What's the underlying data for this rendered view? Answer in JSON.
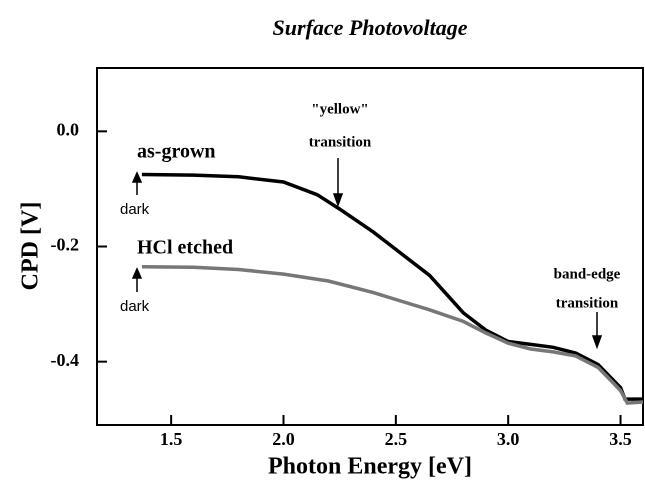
{
  "chart_data": {
    "type": "line",
    "title": "Surface Photovoltage",
    "x_label": "Photon Energy  [eV]",
    "y_label": "CPD  [V]",
    "xlim": [
      1.17,
      3.6
    ],
    "ylim": [
      -0.51,
      0.11
    ],
    "xticks": [
      1.5,
      {
        "value": 2,
        "label": "2.0"
      },
      2.5,
      {
        "value": 3,
        "label": "3.0"
      },
      3.5
    ],
    "yticks": [
      {
        "value": 0,
        "label": "0.0"
      },
      -0.2,
      -0.4
    ],
    "series": [
      {
        "name": "as-grown",
        "color": "#000000",
        "x": [
          1.37,
          1.6,
          1.8,
          2.0,
          2.15,
          2.25,
          2.4,
          2.5,
          2.65,
          2.8,
          2.9,
          3.0,
          3.1,
          3.2,
          3.3,
          3.4,
          3.45,
          3.5,
          3.52,
          3.6
        ],
        "values": [
          -0.075,
          -0.076,
          -0.079,
          -0.088,
          -0.11,
          -0.135,
          -0.175,
          -0.205,
          -0.25,
          -0.315,
          -0.345,
          -0.365,
          -0.37,
          -0.375,
          -0.385,
          -0.405,
          -0.425,
          -0.445,
          -0.465,
          -0.465
        ]
      },
      {
        "name": "HCl etched",
        "color": "#777777",
        "x": [
          1.37,
          1.6,
          1.8,
          2.0,
          2.2,
          2.4,
          2.5,
          2.65,
          2.8,
          2.9,
          3.0,
          3.1,
          3.2,
          3.3,
          3.4,
          3.45,
          3.5,
          3.53,
          3.6
        ],
        "values": [
          -0.235,
          -0.236,
          -0.24,
          -0.248,
          -0.26,
          -0.28,
          -0.292,
          -0.31,
          -0.33,
          -0.35,
          -0.368,
          -0.378,
          -0.383,
          -0.39,
          -0.41,
          -0.43,
          -0.45,
          -0.472,
          -0.47
        ]
      }
    ],
    "annotations": [
      "dark",
      "dark",
      "\"yellow\"",
      "transition",
      "band-edge",
      "transition"
    ]
  }
}
